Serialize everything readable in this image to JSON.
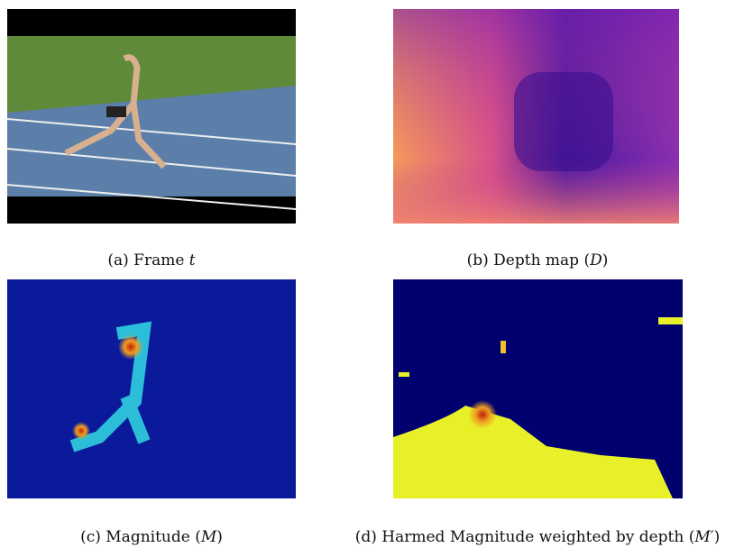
{
  "figures": [
    {
      "caption": {
        "label": "(a)",
        "text": "Frame",
        "math": "t"
      }
    },
    {
      "caption": {
        "label": "(b)",
        "text": "Depth map (",
        "math": "D",
        "after": ")"
      }
    },
    {
      "caption": {
        "label": "(c)",
        "text": "Magnitude (",
        "math": "M",
        "after": ")"
      }
    },
    {
      "caption": {
        "label": "(d)",
        "text": "Harmed Magnitude weighted by depth (",
        "math": "M′",
        "after": ")"
      }
    }
  ]
}
